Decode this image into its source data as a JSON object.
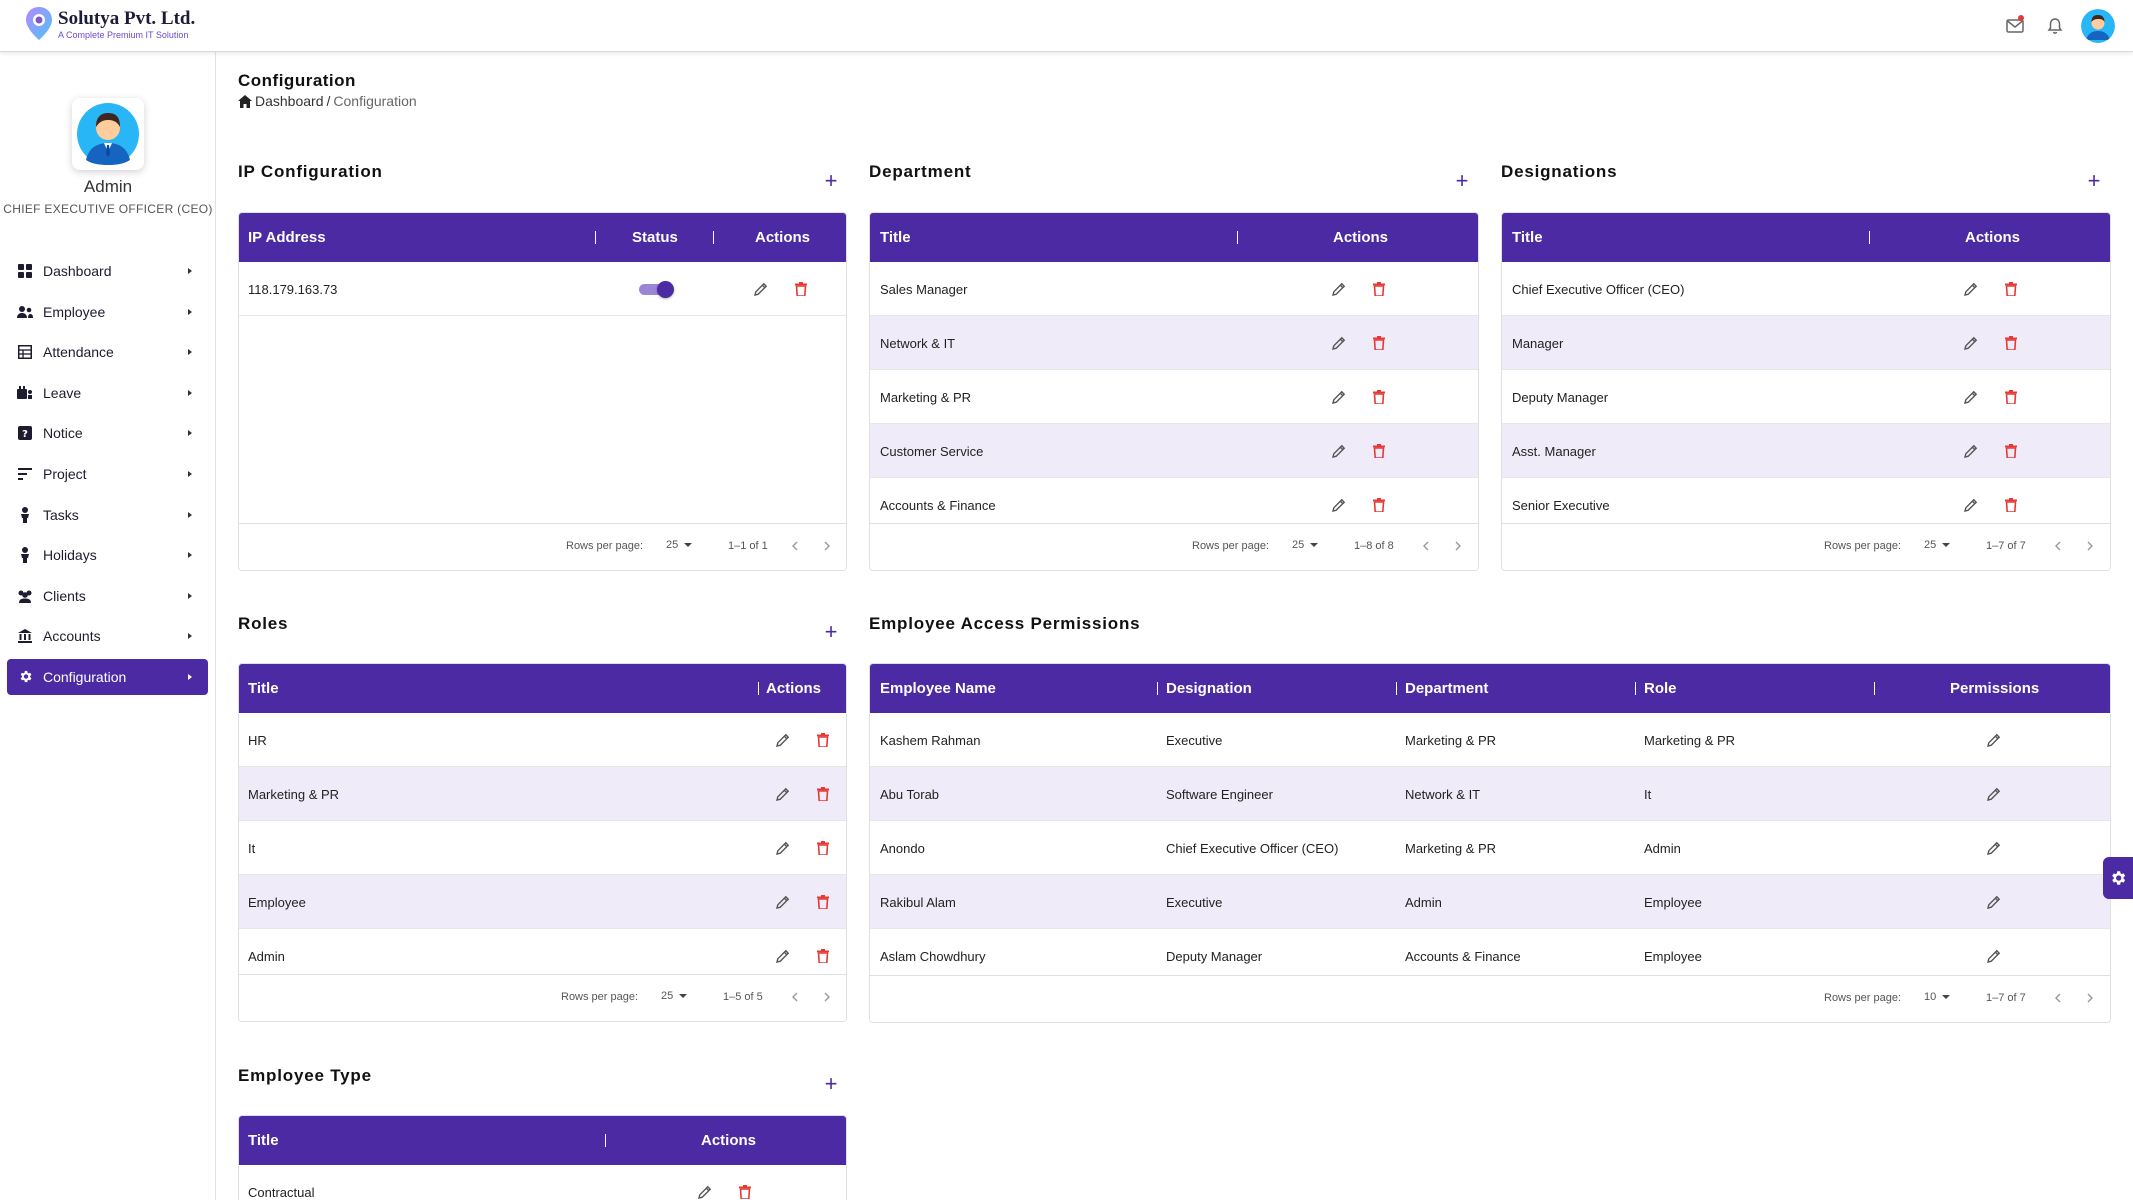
{
  "brand": {
    "name": "Solutya Pvt. Ltd.",
    "tagline": "A Complete Premium IT Solution"
  },
  "profile": {
    "name": "Admin",
    "role": "CHIEF EXECUTIVE OFFICER (CEO)"
  },
  "menu": [
    {
      "label": "Dashboard",
      "icon": "grid-icon"
    },
    {
      "label": "Employee",
      "icon": "users-icon"
    },
    {
      "label": "Attendance",
      "icon": "table-icon"
    },
    {
      "label": "Leave",
      "icon": "leave-icon"
    },
    {
      "label": "Notice",
      "icon": "question-icon"
    },
    {
      "label": "Project",
      "icon": "sort-icon"
    },
    {
      "label": "Tasks",
      "icon": "person-icon"
    },
    {
      "label": "Holidays",
      "icon": "person-icon"
    },
    {
      "label": "Clients",
      "icon": "group-icon"
    },
    {
      "label": "Accounts",
      "icon": "bank-icon"
    },
    {
      "label": "Configuration",
      "icon": "gear-icon"
    }
  ],
  "page": {
    "title": "Configuration",
    "breadcrumb_home": "Dashboard",
    "breadcrumb_sep": "/",
    "breadcrumb_current": "Configuration"
  },
  "ip_config": {
    "title": "IP Configuration",
    "columns": [
      "IP Address",
      "Status",
      "Actions"
    ],
    "rows": [
      {
        "ip": "118.179.163.73",
        "status_on": true
      }
    ],
    "rows_per_page_label": "Rows per page:",
    "rows_per_page": "25",
    "range": "1–1 of 1"
  },
  "department": {
    "title": "Department",
    "columns": [
      "Title",
      "Actions"
    ],
    "rows": [
      "Sales Manager",
      "Network & IT",
      "Marketing & PR",
      "Customer Service",
      "Accounts & Finance"
    ],
    "rows_per_page_label": "Rows per page:",
    "rows_per_page": "25",
    "range": "1–8 of 8"
  },
  "designations": {
    "title": "Designations",
    "columns": [
      "Title",
      "Actions"
    ],
    "rows": [
      "Chief Executive Officer (CEO)",
      "Manager",
      "Deputy Manager",
      "Asst. Manager",
      "Senior Executive"
    ],
    "rows_per_page_label": "Rows per page:",
    "rows_per_page": "25",
    "range": "1–7 of 7"
  },
  "roles": {
    "title": "Roles",
    "columns": [
      "Title",
      "Actions"
    ],
    "rows": [
      "HR",
      "Marketing & PR",
      "It",
      "Employee",
      "Admin"
    ],
    "rows_per_page_label": "Rows per page:",
    "rows_per_page": "25",
    "range": "1–5 of 5"
  },
  "permissions": {
    "title": "Employee Access Permissions",
    "columns": [
      "Employee Name",
      "Designation",
      "Department",
      "Role",
      "Permissions"
    ],
    "rows": [
      [
        "Kashem Rahman",
        "Executive",
        "Marketing & PR",
        "Marketing & PR"
      ],
      [
        "Abu Torab",
        "Software Engineer",
        "Network & IT",
        "It"
      ],
      [
        "Anondo",
        "Chief Executive Officer (CEO)",
        "Marketing & PR",
        "Admin"
      ],
      [
        "Rakibul Alam",
        "Executive",
        "Admin",
        "Employee"
      ],
      [
        "Aslam Chowdhury",
        "Deputy Manager",
        "Accounts & Finance",
        "Employee"
      ]
    ],
    "rows_per_page_label": "Rows per page:",
    "rows_per_page": "10",
    "range": "1–7 of 7"
  },
  "employee_type": {
    "title": "Employee Type",
    "columns": [
      "Title",
      "Actions"
    ],
    "rows": [
      "Contractual"
    ]
  },
  "colors": {
    "primary": "#4b2aa3",
    "row_alt": "#efebf8",
    "danger": "#e53935"
  }
}
